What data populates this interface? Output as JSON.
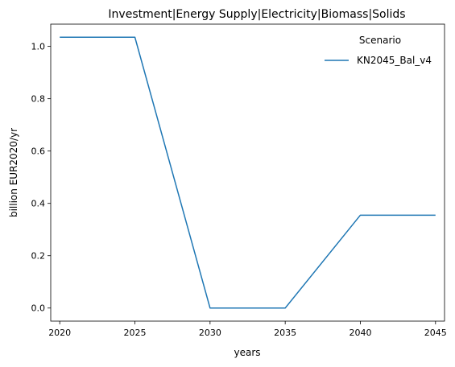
{
  "chart_data": {
    "type": "line",
    "title": "Investment|Energy Supply|Electricity|Biomass|Solids",
    "xlabel": "years",
    "ylabel": "billion EUR2020/yr",
    "x": [
      2020,
      2025,
      2030,
      2035,
      2040,
      2045
    ],
    "xlim": [
      2019.4,
      2045.6
    ],
    "ylim": [
      -0.05,
      1.085
    ],
    "xticks": [
      2020,
      2025,
      2030,
      2035,
      2040,
      2045
    ],
    "xtick_labels": [
      "2020",
      "2025",
      "2030",
      "2035",
      "2040",
      "2045"
    ],
    "yticks": [
      0.0,
      0.2,
      0.4,
      0.6,
      0.8,
      1.0
    ],
    "ytick_labels": [
      "0.0",
      "0.2",
      "0.4",
      "0.6",
      "0.8",
      "1.0"
    ],
    "grid": false,
    "legend": {
      "title": "Scenario",
      "placement": "top-right"
    },
    "series": [
      {
        "name": "KN2045_Bal_v4",
        "color": "#1f77b4",
        "values": [
          1.035,
          1.035,
          0.0,
          0.0,
          0.355,
          0.355
        ]
      }
    ]
  }
}
